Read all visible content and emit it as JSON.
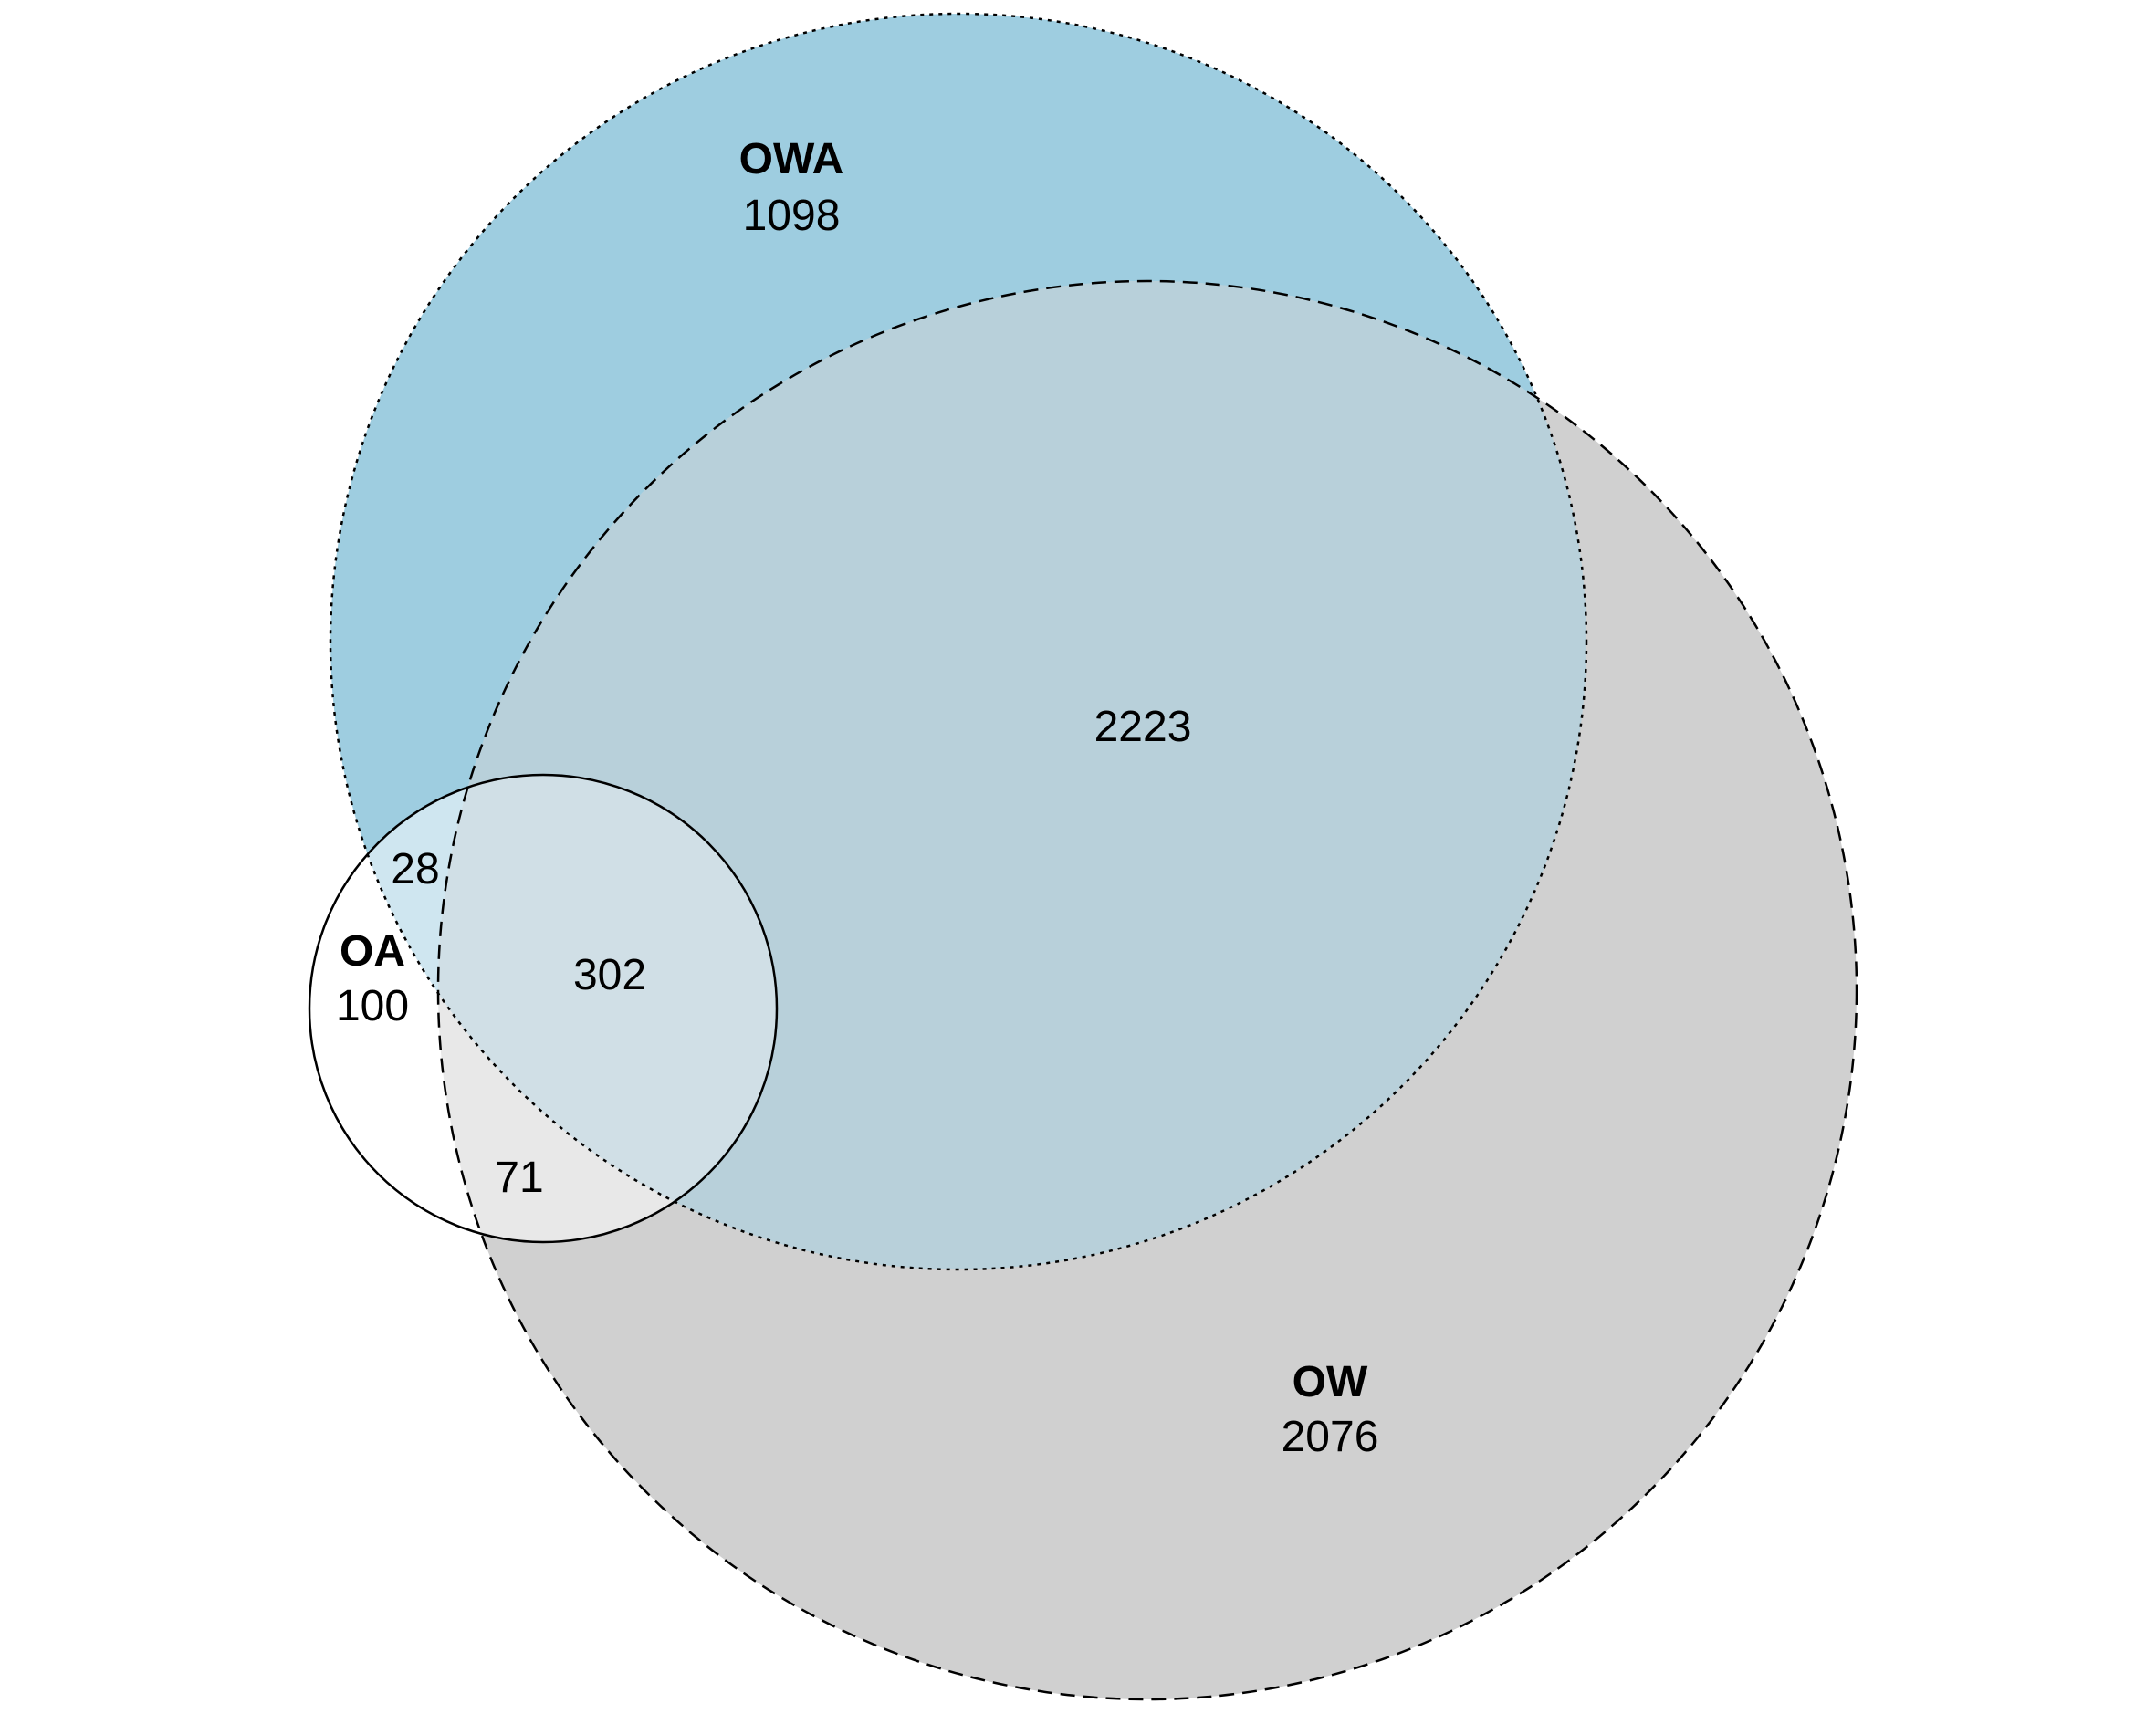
{
  "venn": {
    "sets": {
      "owa": {
        "label": "OWA",
        "color": "#9ecde0"
      },
      "ow": {
        "label": "OW",
        "color": "#d0d0d0"
      },
      "oa": {
        "label": "OA",
        "color": "#ffffff"
      }
    },
    "regions": {
      "owa_only": "1098",
      "ow_only": "2076",
      "oa_only": "100",
      "owa_ow": "2223",
      "owa_oa": "28",
      "ow_oa": "71",
      "all_three": "302"
    }
  }
}
